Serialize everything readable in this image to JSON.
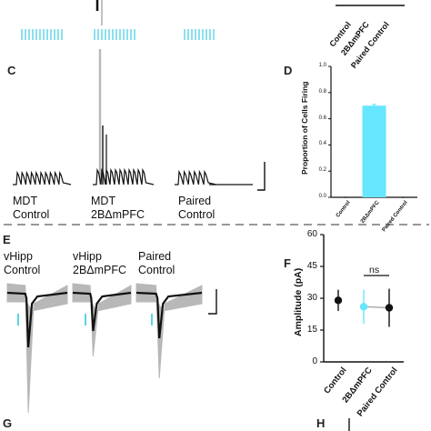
{
  "top_fragment": {
    "xticks": [
      "Control",
      "2BΔmPFC",
      "Paired Control"
    ]
  },
  "panel_c": {
    "letter": "C",
    "conditions": [
      {
        "line1": "MDT",
        "line2": "Control"
      },
      {
        "line1": "MDT",
        "line2": "2BΔmPFC"
      },
      {
        "line1": "Paired",
        "line2": "Control"
      }
    ]
  },
  "panel_d": {
    "letter": "D",
    "chart_data": {
      "type": "bar",
      "ylabel": "Proportion of Cells Firing",
      "categories": [
        "Control",
        "2BΔmPFC",
        "Paired Control"
      ],
      "values": [
        0,
        0.7,
        0
      ],
      "error": [
        0,
        0.01,
        0
      ],
      "ylim": [
        0,
        1.0
      ],
      "yticks": [
        "0.0",
        "0.2",
        "0.4",
        "0.6",
        "0.8",
        "1.0"
      ],
      "bar_color": "#66e6ff"
    }
  },
  "panel_e": {
    "letter": "E",
    "conditions": [
      {
        "line1": "vHipp",
        "line2": "Control"
      },
      {
        "line1": "vHipp",
        "line2": "2BΔmPFC"
      },
      {
        "line1": "Paired",
        "line2": "Control"
      }
    ]
  },
  "panel_f": {
    "letter": "F",
    "chart_data": {
      "type": "scatter",
      "ylabel": "Amplitude (pA)",
      "categories": [
        "Control",
        "2BΔmPFC",
        "Paired Control"
      ],
      "values": [
        29,
        26,
        25.5
      ],
      "error": [
        5,
        8,
        9
      ],
      "ylim": [
        0,
        60
      ],
      "yticks": [
        "0",
        "15",
        "30",
        "45",
        "60"
      ],
      "colors": [
        "#111111",
        "#66e6ff",
        "#111111"
      ],
      "annotation": "ns"
    }
  },
  "panel_g": {
    "letter": "G"
  },
  "panel_h": {
    "letter": "H"
  },
  "colors": {
    "stim": "#5bd3e8",
    "trace": "#111111",
    "overlay": "#b8b8b8"
  }
}
